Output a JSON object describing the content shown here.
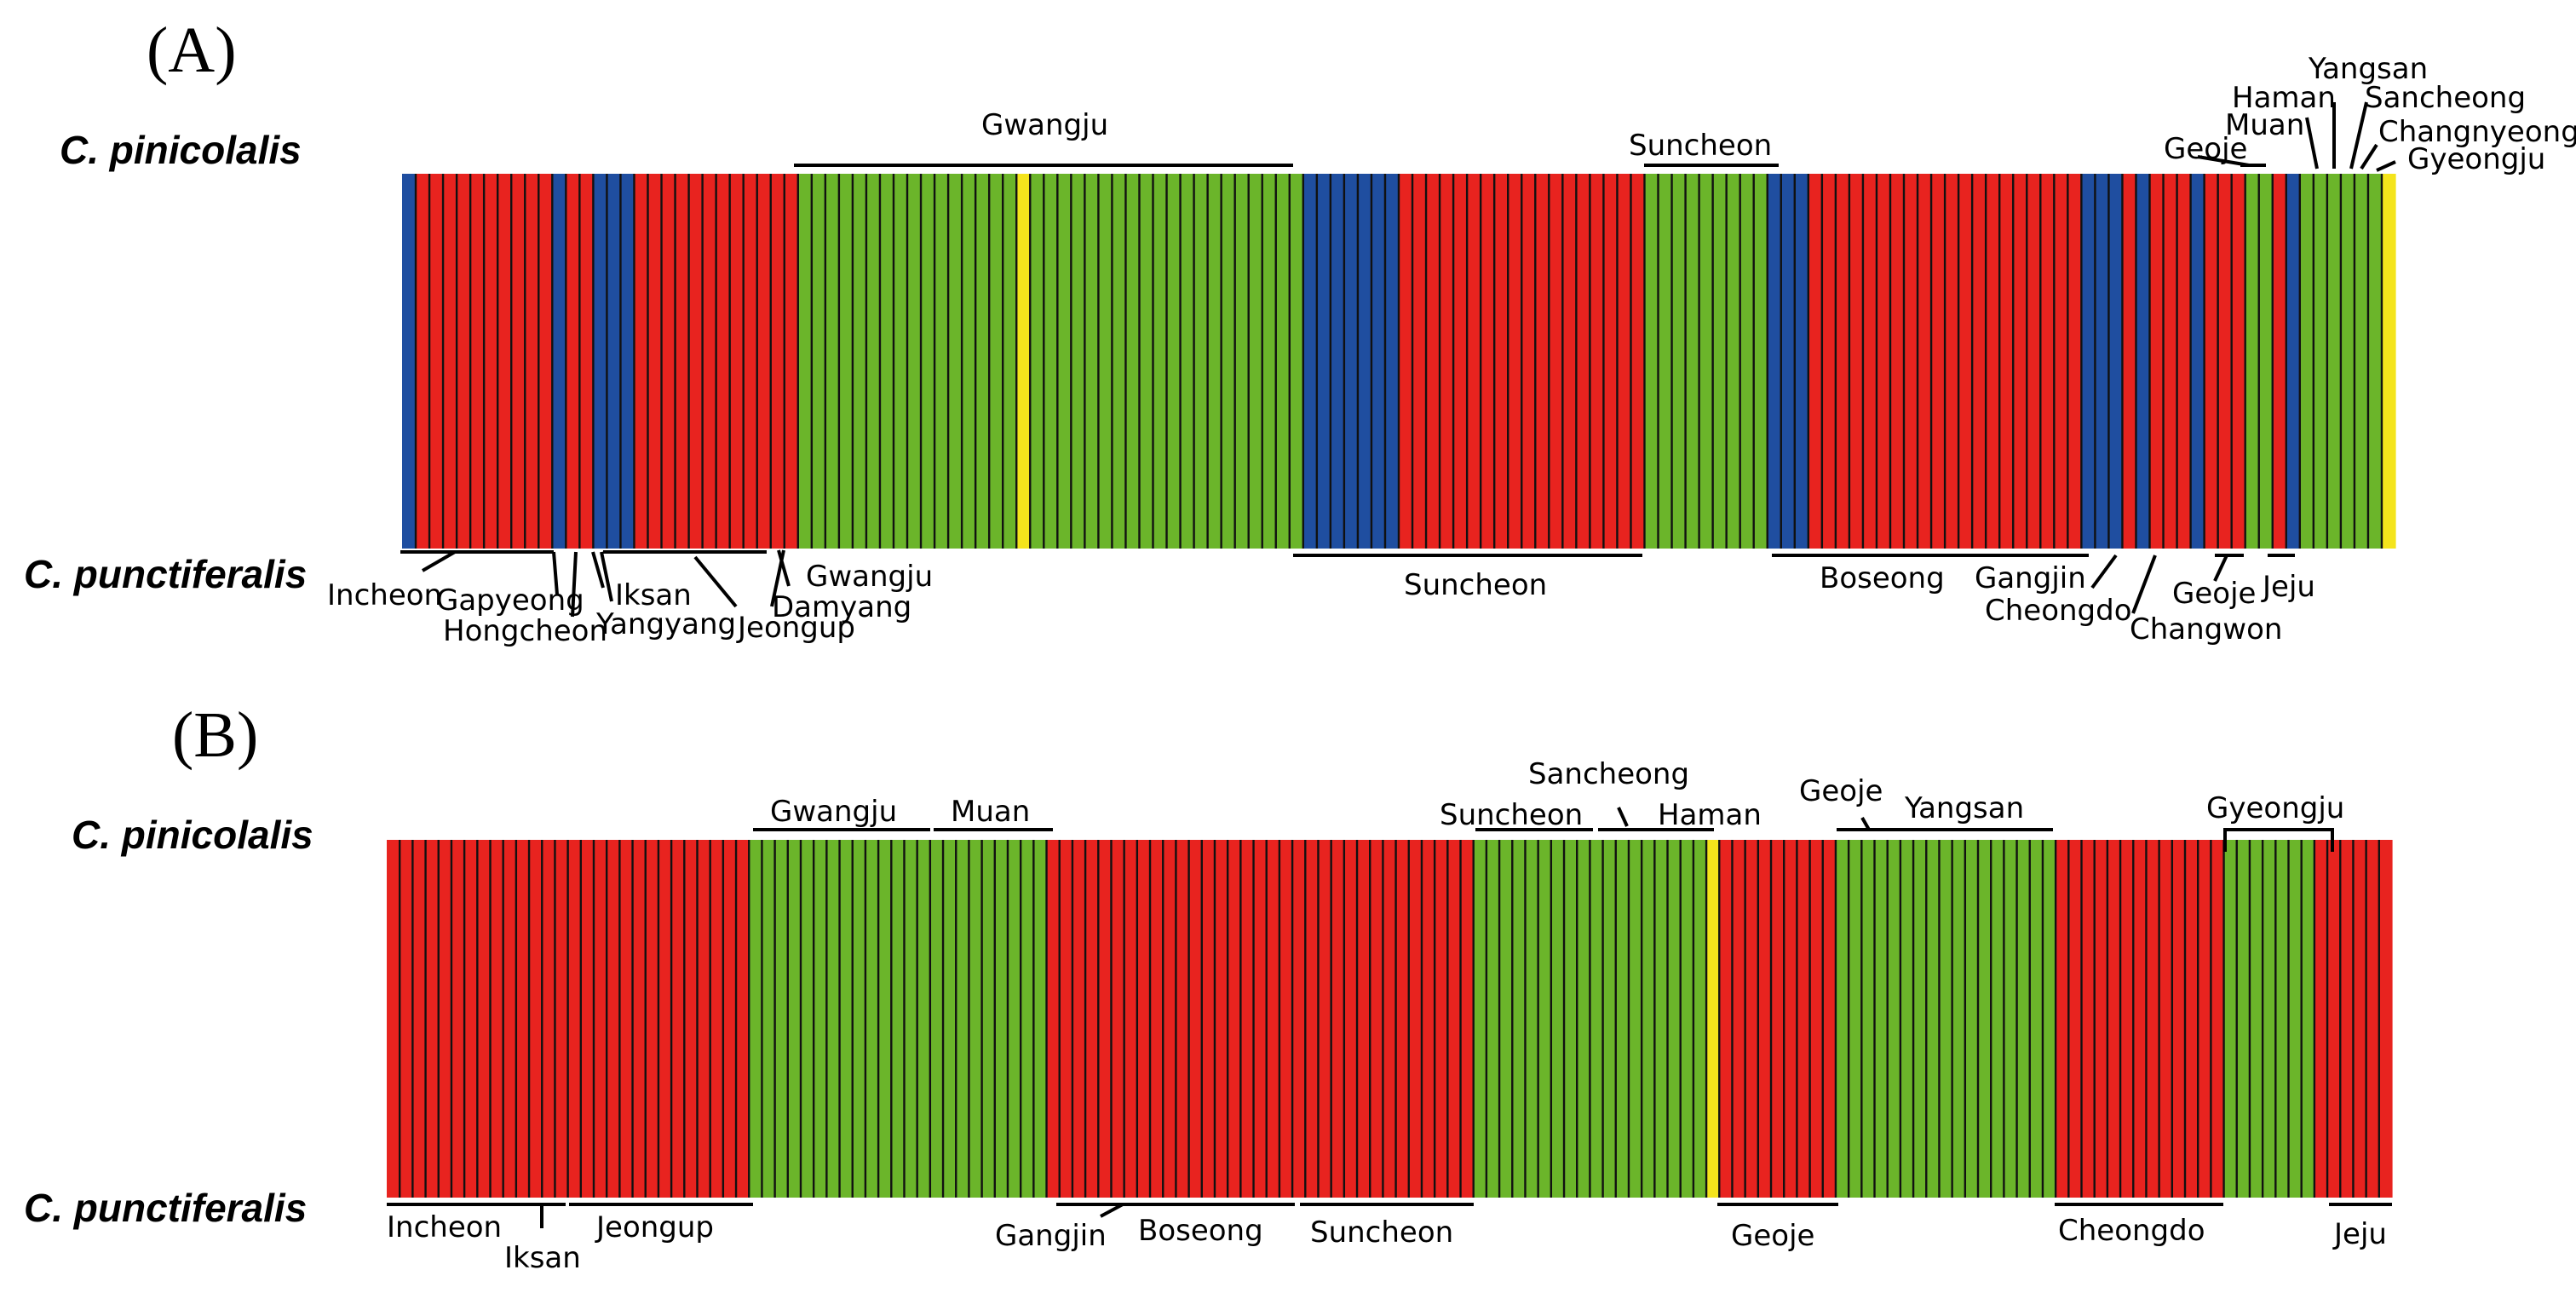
{
  "colors": {
    "red": "#E8231F",
    "green": "#6BB52A",
    "blue": "#1F4EA0",
    "yellow": "#F4E41C",
    "divider": "#111111"
  },
  "chart_data": [
    {
      "type": "bar",
      "panel": "(A)",
      "top_species": "C. pinicolalis",
      "bottom_species": "C. punctiferalis",
      "segments": [
        {
          "cluster": "blue",
          "n": 1
        },
        {
          "cluster": "red",
          "n": 10
        },
        {
          "cluster": "blue",
          "n": 1
        },
        {
          "cluster": "red",
          "n": 2
        },
        {
          "cluster": "blue",
          "n": 3
        },
        {
          "cluster": "red",
          "n": 12
        },
        {
          "cluster": "green",
          "n": 16
        },
        {
          "cluster": "yellow",
          "n": 1
        },
        {
          "cluster": "green",
          "n": 20
        },
        {
          "cluster": "blue",
          "n": 7
        },
        {
          "cluster": "red",
          "n": 18
        },
        {
          "cluster": "green",
          "n": 9
        },
        {
          "cluster": "blue",
          "n": 3
        },
        {
          "cluster": "red",
          "n": 20
        },
        {
          "cluster": "blue",
          "n": 3
        },
        {
          "cluster": "red",
          "n": 1
        },
        {
          "cluster": "blue",
          "n": 1
        },
        {
          "cluster": "red",
          "n": 3
        },
        {
          "cluster": "blue",
          "n": 1
        },
        {
          "cluster": "red",
          "n": 3
        },
        {
          "cluster": "green",
          "n": 2
        },
        {
          "cluster": "red",
          "n": 1
        },
        {
          "cluster": "blue",
          "n": 1
        },
        {
          "cluster": "green",
          "n": 6
        },
        {
          "cluster": "yellow",
          "n": 1
        }
      ],
      "top_labels": [
        "Gwangju",
        "Suncheon",
        "Yangsan",
        "Haman",
        "Sancheong",
        "Muan",
        "Changnyeong",
        "Geoje",
        "Gyeongju"
      ],
      "bottom_labels": [
        "Incheon",
        "Gapyeong",
        "Hongcheon",
        "Iksan",
        "Yangyang",
        "Jeongup",
        "Gwangju",
        "Damyang",
        "Suncheon",
        "Boseong",
        "Gangjin",
        "Cheongdo",
        "Geoje",
        "Changwon",
        "Jeju"
      ]
    },
    {
      "type": "bar",
      "panel": "(B)",
      "top_species": "C. pinicolalis",
      "bottom_species": "C. punctiferalis",
      "segments": [
        {
          "cluster": "red",
          "n": 28
        },
        {
          "cluster": "green",
          "n": 23
        },
        {
          "cluster": "red",
          "n": 33
        },
        {
          "cluster": "green",
          "n": 18
        },
        {
          "cluster": "yellow",
          "n": 1
        },
        {
          "cluster": "red",
          "n": 9
        },
        {
          "cluster": "green",
          "n": 17
        },
        {
          "cluster": "red",
          "n": 13
        },
        {
          "cluster": "green",
          "n": 7
        },
        {
          "cluster": "red",
          "n": 6
        }
      ],
      "top_labels": [
        "Gwangju",
        "Muan",
        "Sancheong",
        "Suncheon",
        "Haman",
        "Geoje",
        "Yangsan",
        "Gyeongju"
      ],
      "bottom_labels": [
        "Incheon",
        "Iksan",
        "Jeongup",
        "Gangjin",
        "Boseong",
        "Suncheon",
        "Geoje",
        "Cheongdo",
        "Jeju"
      ]
    }
  ]
}
